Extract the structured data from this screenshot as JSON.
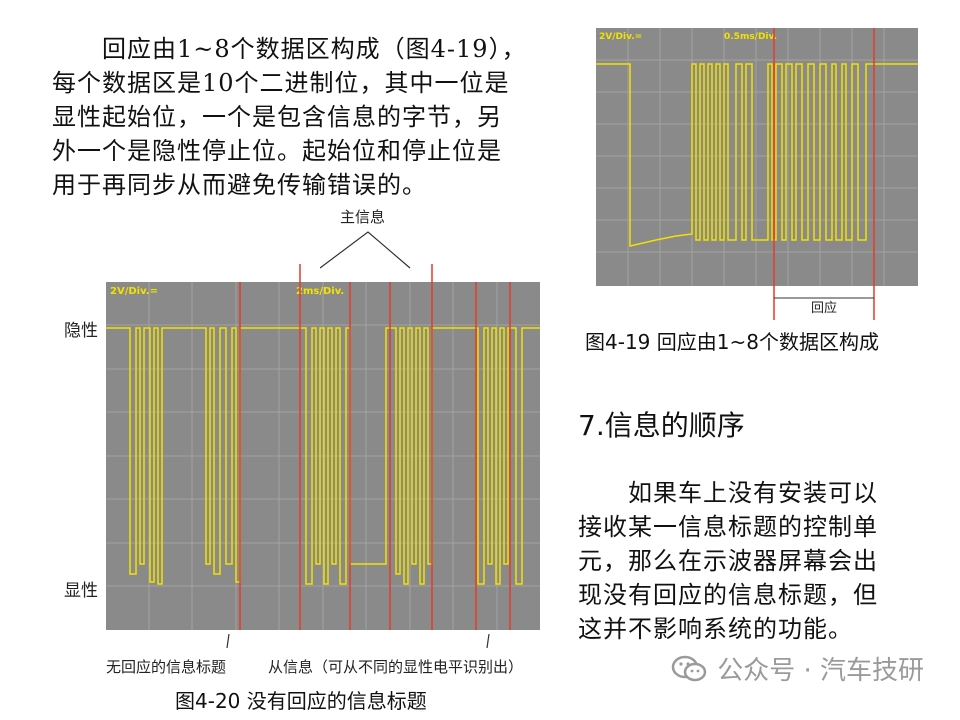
{
  "paragraph1": {
    "lines": [
      "回应由1~8个数据区构成（图4-19），",
      "每个数据区是10个二进制位，其中一位是",
      "显性起始位，一个是包含信息的字节，另",
      "外一个是隐性停止位。起始位和停止位是",
      "用于再同步从而避免传输错误的。"
    ]
  },
  "figure19": {
    "scope_volt_label": "2V/Div.=",
    "scope_time_label": "0.5ms/Div.",
    "bracket_label": "回应",
    "caption": "图4-19  回应由1~8个数据区构成"
  },
  "figure20": {
    "main_info_label": "主信息",
    "recessive_label": "隐性",
    "dominant_label": "显性",
    "scope_volt_label": "2V/Div.=",
    "scope_time_label": "2ms/Div.",
    "annotation_left": "无回应的信息标题",
    "annotation_right": "从信息（可从不同的显性电平识别出）",
    "caption": "图4-20  没有回应的信息标题"
  },
  "section": {
    "heading": "7.信息的顺序"
  },
  "paragraph2": {
    "lines": [
      "如果车上没有安装可以",
      "接收某一信息标题的控制单",
      "元，那么在示波器屏幕会出",
      "现没有回应的信息标题，但",
      "这并不影响系统的功能。"
    ]
  },
  "watermark": {
    "icon": "wechat-icon",
    "text": "公众号 · 汽车技研"
  },
  "colors": {
    "scope_background": "#8a8a8a",
    "trace": "#f2e200",
    "cursor_line": "#e53a2a",
    "grid": "#a8a8a8"
  }
}
